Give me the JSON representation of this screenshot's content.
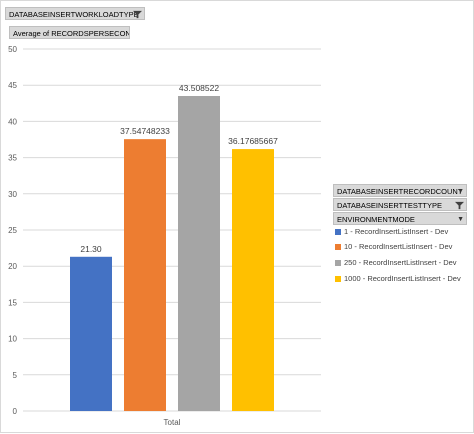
{
  "filter_fields": {
    "workload_type": "DATABASEINSERTWORKLOADTYPE",
    "measure": "Average of RECORDSPERSECOND"
  },
  "legend_fields": {
    "record_count": "DATABASEINSERTRECORDCOUNT",
    "test_type": "DATABASEINSERTTESTTYPE",
    "environment_mode": "ENVIRONMENTMODE"
  },
  "colors": {
    "series1": "#4472c4",
    "series2": "#ed7d31",
    "series3": "#a5a5a5",
    "series4": "#ffc000",
    "gridline": "#d9d9d9",
    "axis_text": "#595959"
  },
  "icons": [
    "filter-icon",
    "dropdown-arrow-icon"
  ],
  "chart_data": {
    "type": "bar",
    "categories": [
      "Total"
    ],
    "ylim": [
      0,
      50
    ],
    "yticks": [
      0,
      5,
      10,
      15,
      20,
      25,
      30,
      35,
      40,
      45,
      50
    ],
    "grid": true,
    "legend_position": "right",
    "series": [
      {
        "name": "1 - RecordInsertListInsert - Dev",
        "values": [
          21.3
        ],
        "label": "21.30"
      },
      {
        "name": "10 - RecordInsertListInsert - Dev",
        "values": [
          37.54748233
        ],
        "label": "37.54748233"
      },
      {
        "name": "250 - RecordInsertListInsert - Dev",
        "values": [
          43.508522
        ],
        "label": "43.508522"
      },
      {
        "name": "1000 - RecordInsertListInsert - Dev",
        "values": [
          36.17685667
        ],
        "label": "36.17685667"
      }
    ]
  }
}
